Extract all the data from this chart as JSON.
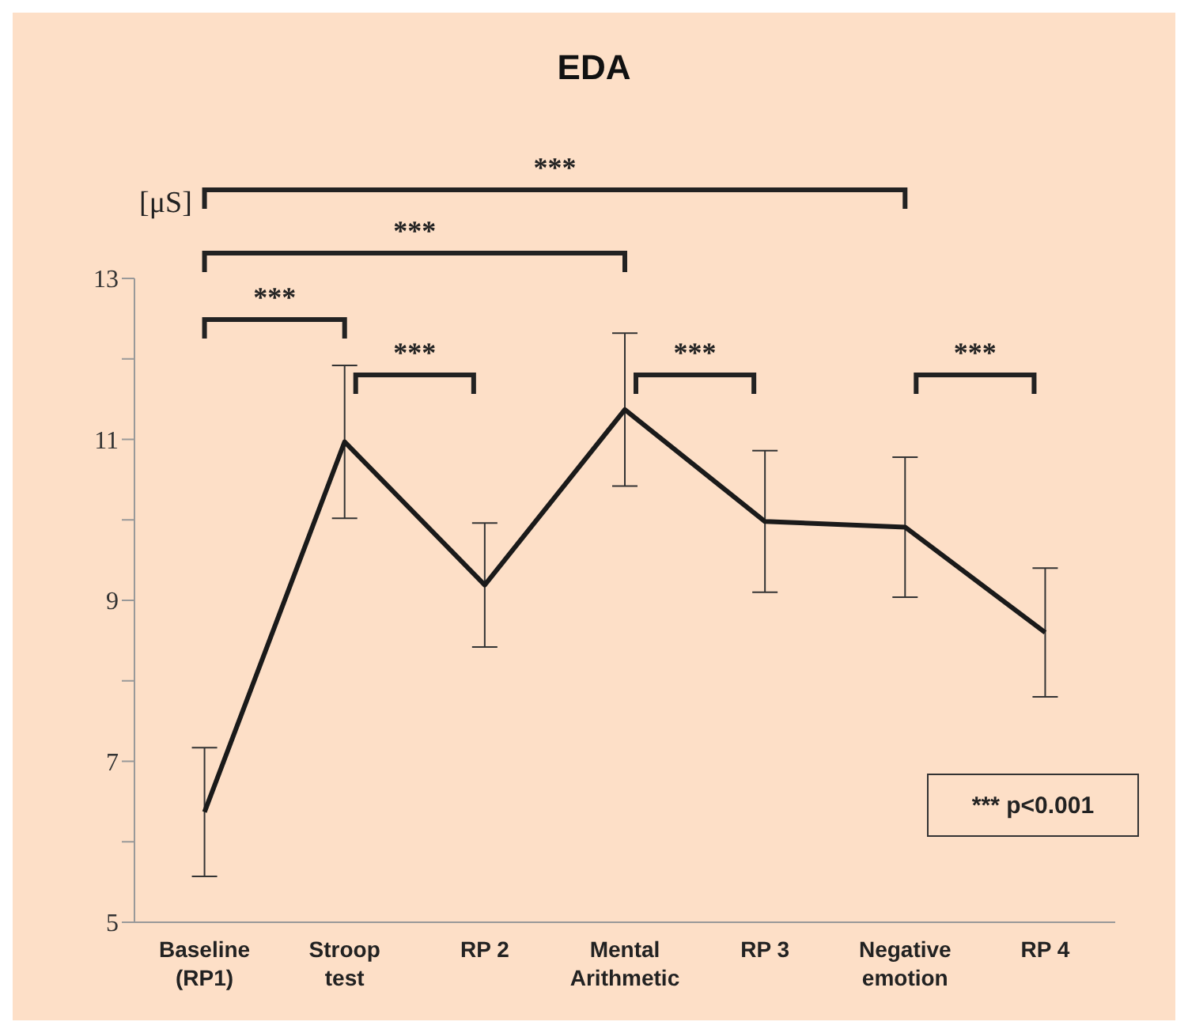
{
  "chart_data": {
    "type": "line",
    "title": "EDA",
    "ylabel": "[μS]",
    "categories": [
      "Baseline (RP1)",
      "Stroop test",
      "RP 2",
      "Mental Arithmetic",
      "RP 3",
      "Negative emotion",
      "RP 4"
    ],
    "values": [
      6.37,
      10.97,
      9.19,
      11.37,
      9.98,
      9.91,
      8.6
    ],
    "errors": [
      0.8,
      0.95,
      0.77,
      0.95,
      0.88,
      0.87,
      0.8
    ],
    "color": "#1a1a1a",
    "ylim": [
      5,
      13
    ],
    "yticks": [
      5,
      {
        "value": 6,
        "label": null
      },
      7,
      {
        "value": 8,
        "label": null
      },
      9,
      {
        "value": 10,
        "label": null
      },
      11,
      {
        "value": 12,
        "label": null
      },
      13
    ],
    "annotations": [
      "***",
      "***",
      "***",
      "***",
      "***",
      "***",
      "*** p<0.001"
    ]
  }
}
